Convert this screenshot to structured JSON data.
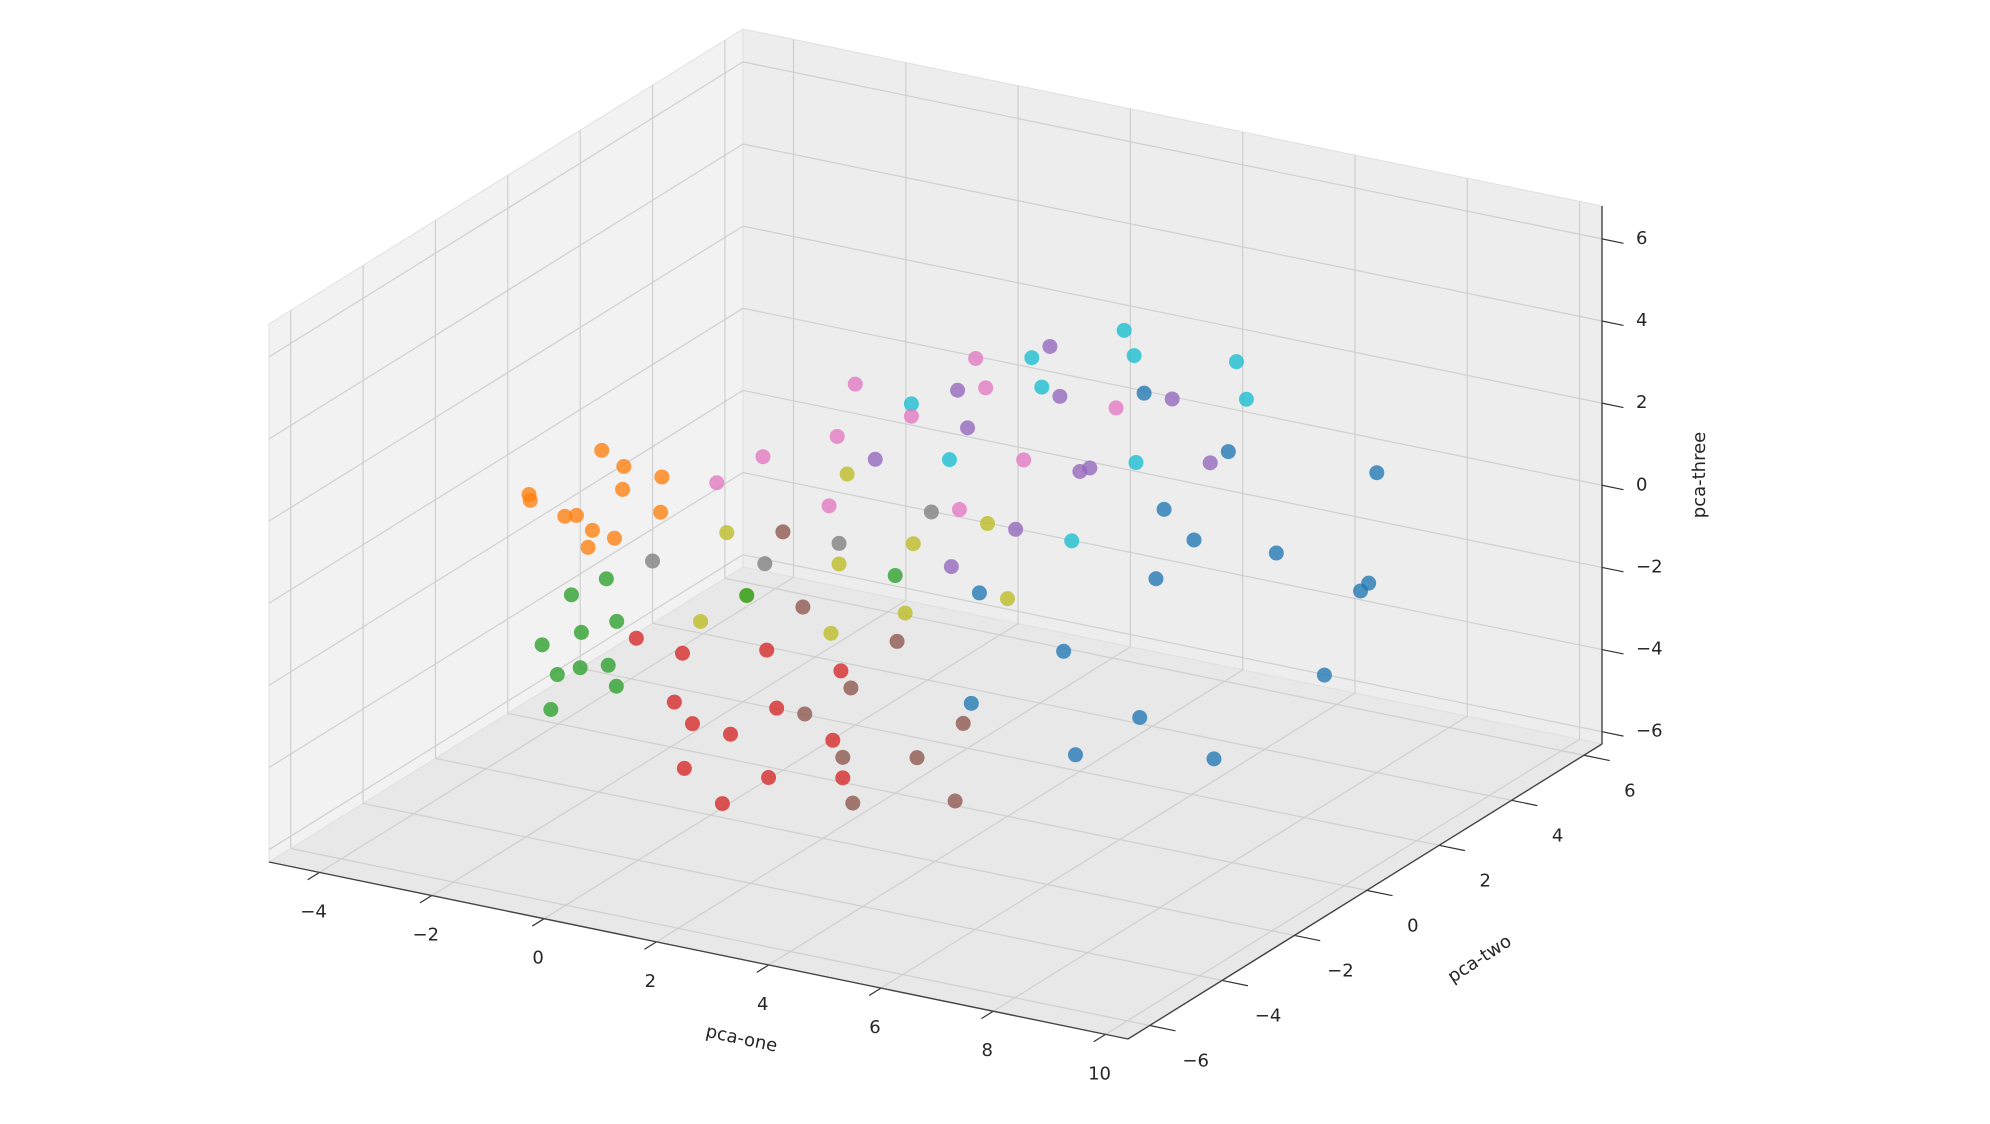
{
  "chart_data": {
    "type": "scatter3d",
    "x_label": "pca-one",
    "y_label": "pca-two",
    "z_label": "pca-three",
    "xlim": [
      -4.9,
      10.4
    ],
    "ylim": [
      -6.6,
      6.5
    ],
    "zlim": [
      -6.3,
      6.8
    ],
    "xticks": [
      {
        "value": -4,
        "label": "−4"
      },
      {
        "value": -2,
        "label": "−2"
      },
      0,
      2,
      4,
      6,
      8,
      10
    ],
    "yticks": [
      {
        "value": -6,
        "label": "−6"
      },
      {
        "value": -4,
        "label": "−4"
      },
      {
        "value": -2,
        "label": "−2"
      },
      0,
      2,
      4,
      6
    ],
    "zticks": [
      {
        "value": -6,
        "label": "−6"
      },
      {
        "value": -4,
        "label": "−4"
      },
      {
        "value": -2,
        "label": "−2"
      },
      0,
      2,
      4,
      6
    ],
    "grid": true,
    "series": [
      {
        "color": "#17becf",
        "x": [
          3,
          4,
          2,
          5,
          3.5,
          1,
          6,
          4.5,
          2.5,
          5.5
        ],
        "y": [
          2.5,
          3.5,
          1.5,
          2,
          4,
          2,
          3.5,
          1,
          3,
          4
        ],
        "z": [
          2.5,
          3,
          1,
          1.5,
          3.2,
          1.8,
          2.5,
          0,
          2.8,
          3
        ]
      },
      {
        "color": "#1f77b4",
        "x": [
          6,
          7.5,
          8.5,
          5,
          4,
          9,
          7,
          6,
          8,
          5.5,
          3.5,
          9,
          6.5,
          7,
          4.5,
          8
        ],
        "y": [
          1,
          2,
          3,
          0,
          -1,
          1,
          -1,
          3,
          4,
          2,
          0,
          2,
          -2,
          0.5,
          3,
          -0.5
        ],
        "z": [
          -0.5,
          0,
          -1,
          -2,
          -3,
          -2,
          -2.5,
          1.5,
          1,
          0.5,
          -1,
          -0.5,
          -3,
          1,
          2.5,
          -3.5
        ]
      },
      {
        "color": "#9467bd",
        "x": [
          2,
          3,
          4,
          1,
          5,
          3.5,
          2.5,
          4.5,
          1.5,
          6,
          3
        ],
        "y": [
          2,
          3,
          2,
          1,
          3,
          1,
          3.5,
          1.5,
          2.5,
          2.5,
          0
        ],
        "z": [
          1.5,
          2,
          1,
          1,
          2.5,
          0,
          2.8,
          1.5,
          2,
          1.5,
          -0.5
        ]
      },
      {
        "color": "#e377c2",
        "x": [
          1,
          0,
          -1,
          2,
          0.5,
          3,
          -1.5,
          1.5,
          2.5,
          4,
          0
        ],
        "y": [
          2,
          1.5,
          1,
          2.5,
          0.5,
          2,
          0.5,
          3,
          1,
          3,
          2
        ],
        "z": [
          1.5,
          1,
          0.5,
          2.2,
          0,
          1,
          0,
          2.5,
          0.2,
          2,
          2
        ]
      },
      {
        "color": "#bcbd22",
        "x": [
          1,
          0,
          2,
          -1,
          3,
          1.5,
          0.5,
          -0.5,
          2.5,
          4
        ],
        "y": [
          0,
          -1,
          0.5,
          0,
          1,
          -1,
          1,
          -1.5,
          -0.5,
          0
        ],
        "z": [
          -1,
          -1.5,
          -0.5,
          -0.8,
          0,
          -2,
          0.5,
          -2,
          -1.5,
          -1
        ]
      },
      {
        "color": "#7f7f7f",
        "x": [
          0,
          1,
          -2,
          2
        ],
        "y": [
          -0.5,
          0,
          -0.5,
          1
        ],
        "z": [
          -1,
          -0.5,
          -1.5,
          0
        ]
      },
      {
        "color": "#8c564b",
        "x": [
          3,
          4,
          2.5,
          5,
          3.5,
          1,
          4.5,
          2,
          0,
          3
        ],
        "y": [
          -3,
          -2.5,
          -2,
          -3,
          -3.5,
          -1,
          -2,
          -2.5,
          0,
          -1.5
        ],
        "z": [
          -3.5,
          -3.5,
          -2.5,
          -4,
          -4.2,
          -1.5,
          -2.8,
          -3,
          -0.5,
          -1.5
        ]
      },
      {
        "color": "#2ca02c",
        "x": [
          -2.3,
          -2.8,
          -2,
          -2.6,
          -1.8,
          -2.2,
          -3,
          -1.5,
          -2.5,
          -2,
          0,
          2
        ],
        "y": [
          -2,
          -1.5,
          -2.5,
          -2.2,
          -1.8,
          -3,
          -2,
          -2.5,
          -1,
          -1.5,
          -1,
          0
        ],
        "z": [
          -2.5,
          -2,
          -3,
          -3.5,
          -2.2,
          -3.8,
          -3,
          -2.8,
          -1.8,
          -4,
          -1.5,
          -1
        ]
      },
      {
        "color": "#d62728",
        "x": [
          1,
          0,
          2,
          1.5,
          0.5,
          -0.5,
          2.5,
          1,
          3,
          0,
          1.5,
          2,
          -1
        ],
        "y": [
          -3,
          -3,
          -3.5,
          -2.5,
          -3.5,
          -2,
          -2.5,
          -2,
          -3,
          -2.5,
          -4,
          -1.5,
          -2.5
        ],
        "z": [
          -3.5,
          -3,
          -4,
          -3,
          -4.2,
          -2.5,
          -3.5,
          -2,
          -4,
          -3.8,
          -4.5,
          -2.5,
          -2
        ]
      },
      {
        "color": "#ff7f0e",
        "x": [
          -4.5,
          -4,
          -3.5,
          -4.2,
          -3,
          -3.8,
          -2.8,
          -4.4,
          -3.2,
          -2.5,
          -4,
          -3.6
        ],
        "y": [
          0,
          0.5,
          1,
          -0.5,
          0,
          1.5,
          1,
          0.8,
          -0.3,
          0.5,
          1.2,
          0.2
        ],
        "z": [
          -1,
          -1.5,
          -1,
          -0.5,
          -1.5,
          -0.8,
          -0.5,
          -1.8,
          -1.2,
          -1,
          -0.3,
          -2
        ]
      }
    ]
  }
}
